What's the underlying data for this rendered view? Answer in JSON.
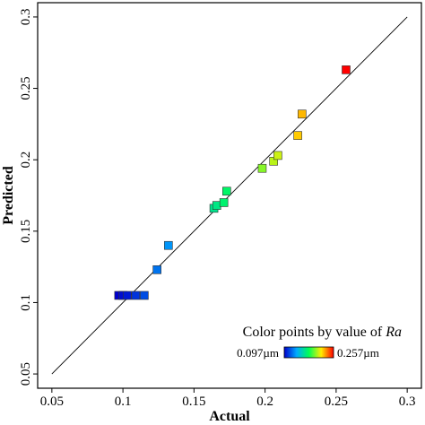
{
  "chart_data": {
    "type": "scatter",
    "title": "",
    "xlabel": "Actual",
    "ylabel": "Predicted",
    "xlim": [
      0.04,
      0.31
    ],
    "ylim": [
      0.04,
      0.31
    ],
    "x_ticks": [
      0.05,
      0.1,
      0.15,
      0.2,
      0.25,
      0.3
    ],
    "x_tick_labels": [
      "0.05",
      "0.1",
      "0.15",
      "0.2",
      "0.25",
      "0.3"
    ],
    "y_ticks": [
      0.05,
      0.1,
      0.15,
      0.2,
      0.25,
      0.3
    ],
    "y_tick_labels": [
      "0.05",
      "0.1",
      "0.15",
      "0.2",
      "0.25",
      "0.3"
    ],
    "grid": false,
    "reference_line": {
      "from": [
        0.05,
        0.05
      ],
      "to": [
        0.3,
        0.3
      ],
      "color": "#000000"
    },
    "points": [
      {
        "x": 0.097,
        "y": 0.105
      },
      {
        "x": 0.1,
        "y": 0.105
      },
      {
        "x": 0.103,
        "y": 0.105
      },
      {
        "x": 0.109,
        "y": 0.105
      },
      {
        "x": 0.115,
        "y": 0.105
      },
      {
        "x": 0.124,
        "y": 0.123
      },
      {
        "x": 0.132,
        "y": 0.14
      },
      {
        "x": 0.164,
        "y": 0.166
      },
      {
        "x": 0.166,
        "y": 0.168
      },
      {
        "x": 0.171,
        "y": 0.17
      },
      {
        "x": 0.173,
        "y": 0.178
      },
      {
        "x": 0.198,
        "y": 0.194
      },
      {
        "x": 0.206,
        "y": 0.199
      },
      {
        "x": 0.209,
        "y": 0.203
      },
      {
        "x": 0.223,
        "y": 0.217
      },
      {
        "x": 0.226,
        "y": 0.232
      },
      {
        "x": 0.257,
        "y": 0.263
      }
    ],
    "color_scale": {
      "min": 0.097,
      "max": 0.257,
      "colors": [
        "#0000cc",
        "#00aaff",
        "#00ff55",
        "#ffee00",
        "#ff0000"
      ]
    },
    "legend": {
      "title": "Color points by value of ",
      "title_var": "Ra",
      "min_label": "0.097µm",
      "max_label": "0.257µm",
      "placement": "bottom-right"
    }
  }
}
